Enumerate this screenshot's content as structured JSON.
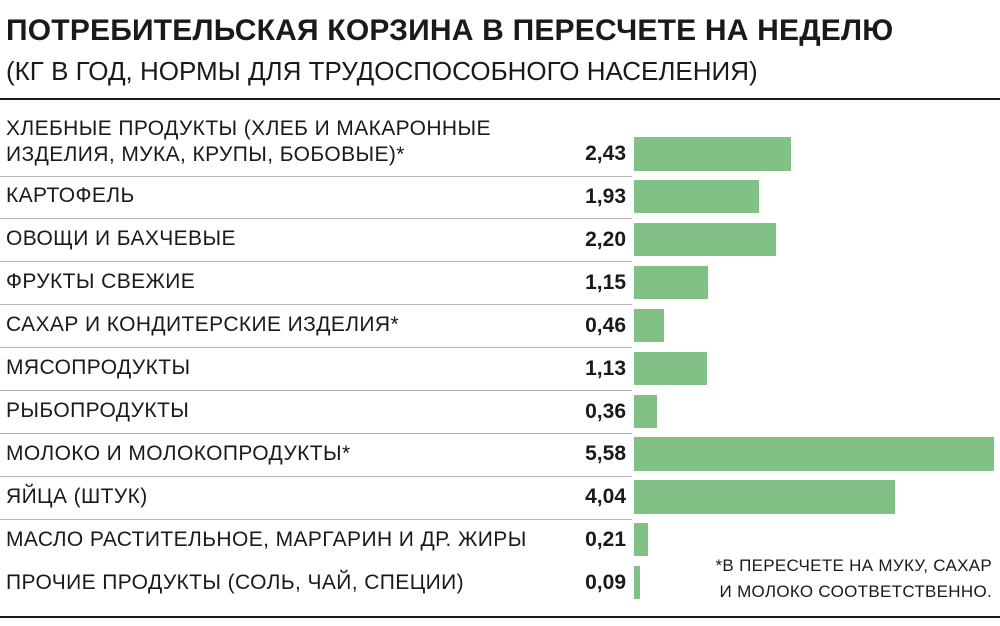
{
  "title": "ПОТРЕБИТЕЛЬСКАЯ КОРЗИНА В ПЕРЕСЧЕТЕ НА НЕДЕЛЮ",
  "subtitle": "(КГ В ГОД, НОРМЫ ДЛЯ ТРУДОСПОСОБНОГО НАСЕЛЕНИЯ)",
  "footnote": [
    "*В ПЕРЕСЧЕТЕ НА МУКУ, САХАР",
    "И МОЛОКО СООТВЕТСТВЕННО."
  ],
  "colors": {
    "bar": "#82c185",
    "text": "#1a1a1a"
  },
  "chart_data": {
    "type": "bar",
    "orientation": "horizontal",
    "title": "ПОТРЕБИТЕЛЬСКАЯ КОРЗИНА В ПЕРЕСЧЕТЕ НА НЕДЕЛЮ",
    "subtitle": "(КГ В ГОД, НОРМЫ ДЛЯ ТРУДОСПОСОБНОГО НАСЕЛЕНИЯ)",
    "categories": [
      [
        "ХЛЕБНЫЕ ПРОДУКТЫ (ХЛЕБ И МАКАРОННЫЕ",
        "ИЗДЕЛИЯ, МУКА, КРУПЫ, БОБОВЫЕ)*"
      ],
      [
        "КАРТОФЕЛЬ"
      ],
      [
        "ОВОЩИ И БАХЧЕВЫЕ"
      ],
      [
        "ФРУКТЫ СВЕЖИЕ"
      ],
      [
        "САХАР И КОНДИТЕРСКИЕ ИЗДЕЛИЯ*"
      ],
      [
        "МЯСОПРОДУКТЫ"
      ],
      [
        "РЫБОПРОДУКТЫ"
      ],
      [
        "МОЛОКО И МОЛОКОПРОДУКТЫ*"
      ],
      [
        "ЯЙЦА (ШТУК)"
      ],
      [
        "МАСЛО РАСТИТЕЛЬНОЕ, МАРГАРИН И ДР. ЖИРЫ"
      ],
      [
        "ПРОЧИЕ ПРОДУКТЫ (СОЛЬ, ЧАЙ, СПЕЦИИ)"
      ]
    ],
    "values": [
      2.43,
      1.93,
      2.2,
      1.15,
      0.46,
      1.13,
      0.36,
      5.58,
      4.04,
      0.21,
      0.09
    ],
    "value_labels": [
      "2,43",
      "1,93",
      "2,20",
      "1,15",
      "0,46",
      "1,13",
      "0,36",
      "5,58",
      "4,04",
      "0,21",
      "0,09"
    ],
    "xlim": [
      0,
      5.58
    ],
    "grid": false,
    "legend": "none"
  }
}
